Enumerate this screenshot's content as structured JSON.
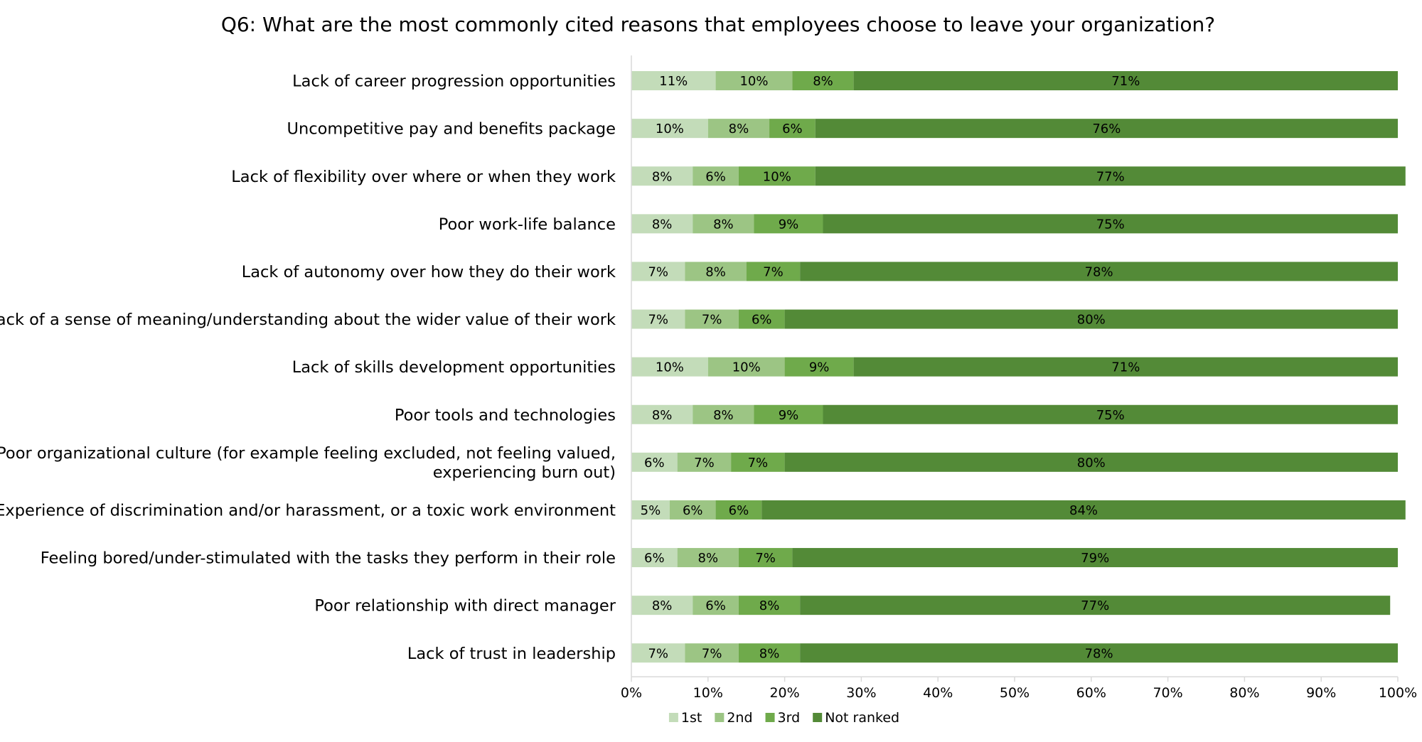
{
  "chart_data": {
    "type": "bar",
    "orientation": "horizontal",
    "stacked": true,
    "title": "Q6: What are the most commonly cited reasons that employees choose to leave your organization?",
    "categories": [
      [
        "Lack of career progression opportunities"
      ],
      [
        "Uncompetitive pay and benefits package"
      ],
      [
        "Lack of flexibility over where or when they work"
      ],
      [
        "Poor work-life balance"
      ],
      [
        "Lack of autonomy over how they do their work"
      ],
      [
        "Lack of a sense of meaning/understanding about the wider value of their work"
      ],
      [
        "Lack of skills development opportunities"
      ],
      [
        "Poor tools and technologies"
      ],
      [
        "Poor organizational culture (for example feeling excluded, not feeling valued,",
        "experiencing burn out)"
      ],
      [
        "Experience of discrimination and/or harassment, or a toxic work environment"
      ],
      [
        "Feeling bored/under-stimulated with the tasks they perform in their role"
      ],
      [
        "Poor relationship with direct manager"
      ],
      [
        "Lack of trust in leadership"
      ]
    ],
    "series": [
      {
        "name": "1st",
        "color": "#c3dcb9",
        "values": [
          11,
          10,
          8,
          8,
          7,
          7,
          10,
          8,
          6,
          5,
          6,
          8,
          7
        ]
      },
      {
        "name": "2nd",
        "color": "#9cc584",
        "values": [
          10,
          8,
          6,
          8,
          8,
          7,
          10,
          8,
          7,
          6,
          8,
          6,
          7
        ]
      },
      {
        "name": "3rd",
        "color": "#6faa4b",
        "values": [
          8,
          6,
          10,
          9,
          7,
          6,
          9,
          9,
          7,
          6,
          7,
          8,
          8
        ]
      },
      {
        "name": "Not ranked",
        "color": "#538a37",
        "values": [
          71,
          76,
          77,
          75,
          78,
          80,
          71,
          75,
          80,
          84,
          79,
          77,
          78
        ]
      }
    ],
    "x_ticks": [
      "0%",
      "10%",
      "20%",
      "30%",
      "40%",
      "50%",
      "60%",
      "70%",
      "80%",
      "90%",
      "100%"
    ],
    "xlim": [
      0,
      100
    ],
    "value_suffix": "%",
    "grid": false,
    "legend_position": "bottom"
  }
}
